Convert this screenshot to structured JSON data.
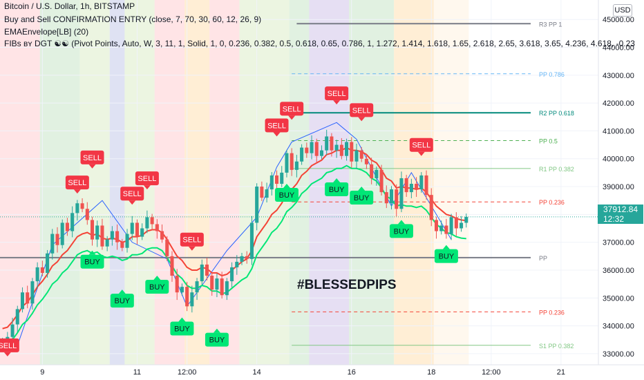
{
  "header": {
    "symbol_line": "Bitcoin / U.S. Dollar, 1h, BITSTAMP",
    "indicator_1": "Buy and Sell CONFIRMATION ENTRY (close, 7, 70, 30, 60, 12, 26, 9)",
    "indicator_2": "EMAEnvelope[LB] (20)",
    "indicator_3": "FIBs ʙʏ DGT ☯☯ (Pivot Points, Auto, W, 3, 11, 1, Solid, 1, 0, 0.236, 0.382, 0.5, 0.618, 0.65, 0.786, 1, 1.272, 1.414, 1.618, 1.65, 2.618, 2.65, 3.618, 3.65, 4.236, 4.618, -0.23"
  },
  "currency_badge": "USD",
  "current_price": {
    "value": "37912.84",
    "countdown": "12:32",
    "level": 37912.84
  },
  "watermark_text": "#BLESSEDPIPS",
  "colors": {
    "up": "#26a69a",
    "down": "#ef5350",
    "sell": "#f23645",
    "buy": "#00e676",
    "ema_red": "#f44336",
    "ema_green": "#4caf50",
    "pivot": "#787b86"
  },
  "chart_data": {
    "type": "candlestick",
    "ylim": [
      32600,
      45700
    ],
    "y_ticks": [
      "33000.00",
      "34000.00",
      "35000.00",
      "36000.00",
      "37000.00",
      "38000.00",
      "39000.00",
      "40000.00",
      "41000.00",
      "42000.00",
      "43000.00",
      "44000.00",
      "45000.00"
    ],
    "x_ticks": [
      {
        "label": "9",
        "bar": 8
      },
      {
        "label": "11",
        "bar": 27
      },
      {
        "label": "12:00",
        "bar": 37
      },
      {
        "label": "14",
        "bar": 51
      },
      {
        "label": "16",
        "bar": 70
      },
      {
        "label": "18",
        "bar": 86
      },
      {
        "label": "12:00",
        "bar": 98
      },
      {
        "label": "21",
        "bar": 112
      }
    ],
    "bars_total": 120,
    "close": [
      33450,
      33600,
      34050,
      34600,
      35200,
      34800,
      35600,
      36100,
      35900,
      36600,
      37300,
      36900,
      37700,
      37400,
      38050,
      38400,
      38200,
      37800,
      37100,
      37600,
      36850,
      37100,
      37400,
      37000,
      36800,
      37300,
      37700,
      37200,
      37500,
      37900,
      37650,
      37400,
      37100,
      36500,
      35800,
      35200,
      35400,
      34700,
      35200,
      35600,
      36200,
      35800,
      35300,
      35700,
      35100,
      35600,
      36100,
      36300,
      36500,
      36400,
      37700,
      39000,
      38600,
      38900,
      39400,
      39100,
      39500,
      40200,
      39600,
      39900,
      40400,
      40200,
      40600,
      40100,
      40300,
      40800,
      40300,
      40500,
      40100,
      40600,
      39900,
      40300,
      40000,
      39800,
      39300,
      39600,
      38800,
      38400,
      38900,
      38200,
      39300,
      38800,
      39100,
      38900,
      39400,
      38700,
      37800,
      37400,
      37600,
      37300,
      37900,
      37500,
      37700,
      37912
    ],
    "ema_upper": [
      33900,
      33950,
      34150,
      34400,
      34700,
      34850,
      35100,
      35400,
      35600,
      35850,
      36150,
      36300,
      36550,
      36700,
      36950,
      37200,
      37300,
      37350,
      37250,
      37300,
      37150,
      37100,
      37150,
      37100,
      37000,
      37050,
      37200,
      37200,
      37250,
      37400,
      37450,
      37450,
      37350,
      37100,
      36800,
      36500,
      36350,
      36100,
      36000,
      36000,
      36100,
      36050,
      35900,
      35900,
      35800,
      35850,
      36000,
      36150,
      36300,
      36400,
      36700,
      37200,
      37450,
      37700,
      38000,
      38150,
      38400,
      38750,
      38900,
      39100,
      39400,
      39550,
      39750,
      39850,
      39950,
      40150,
      40200,
      40300,
      40300,
      40400,
      40300,
      40300,
      40250,
      40150,
      39950,
      39850,
      39600,
      39300,
      39200,
      38950,
      39000,
      38950,
      38950,
      38900,
      38950,
      38800,
      38550,
      38300,
      38150,
      38000,
      37950,
      37850,
      37800,
      37780
    ],
    "ema_lower": [
      33200,
      33300,
      33500,
      33750,
      34050,
      34200,
      34450,
      34750,
      34950,
      35200,
      35500,
      35650,
      35900,
      36050,
      36300,
      36550,
      36650,
      36700,
      36600,
      36650,
      36500,
      36450,
      36500,
      36450,
      36350,
      36400,
      36550,
      36550,
      36600,
      36750,
      36800,
      36800,
      36700,
      36450,
      36150,
      35850,
      35700,
      35450,
      35350,
      35350,
      35450,
      35400,
      35250,
      35250,
      35150,
      35200,
      35350,
      35500,
      35650,
      35750,
      36050,
      36550,
      36800,
      37050,
      37350,
      37500,
      37750,
      38100,
      38250,
      38450,
      38750,
      38900,
      39100,
      39200,
      39300,
      39500,
      39550,
      39650,
      39650,
      39750,
      39650,
      39650,
      39600,
      39500,
      39300,
      39200,
      38950,
      38650,
      38550,
      38300,
      38350,
      38300,
      38300,
      38250,
      38300,
      38150,
      37900,
      37650,
      37500,
      37350,
      37300,
      37200,
      37150,
      37130
    ],
    "pivot_levels": [
      {
        "label": "R3 PP 1",
        "value": 44850,
        "color": "#787b86",
        "style": "solid",
        "width": 2
      },
      {
        "label": "PP 0.786",
        "value": 43050,
        "color": "#64b5f6",
        "style": "dashed",
        "width": 1
      },
      {
        "label": "R2 PP 0.618",
        "value": 41650,
        "color": "#00897b",
        "style": "solid",
        "width": 2
      },
      {
        "label": "PP 0.5",
        "value": 40650,
        "color": "#4caf50",
        "style": "dashed",
        "width": 1
      },
      {
        "label": "R1 PP 0.382",
        "value": 39650,
        "color": "#81c784",
        "style": "solid",
        "width": 1
      },
      {
        "label": "PP 0.236",
        "value": 38450,
        "color": "#f44336",
        "style": "dashed",
        "width": 1
      },
      {
        "label": "PP",
        "value": 36450,
        "color": "#787b86",
        "style": "solid",
        "width": 2
      },
      {
        "label": "PP 0.236",
        "value": 34500,
        "color": "#f44336",
        "style": "dashed",
        "width": 1
      },
      {
        "label": "S1 PP 0.382",
        "value": 33300,
        "color": "#81c784",
        "style": "solid",
        "width": 1
      }
    ],
    "signals": [
      {
        "type": "sell",
        "label": "SELL",
        "bar": 1,
        "price": 32900
      },
      {
        "type": "sell",
        "label": "SELL",
        "bar": 15,
        "price": 38750
      },
      {
        "type": "sell",
        "label": "SELL",
        "bar": 18,
        "price": 39650
      },
      {
        "type": "sell",
        "label": "SELL",
        "bar": 26,
        "price": 38350
      },
      {
        "type": "sell",
        "label": "SELL",
        "bar": 29,
        "price": 38900
      },
      {
        "type": "sell",
        "label": "SELL",
        "bar": 38,
        "price": 36700
      },
      {
        "type": "sell",
        "label": "SELL",
        "bar": 55,
        "price": 40800
      },
      {
        "type": "sell",
        "label": "SELL",
        "bar": 58,
        "price": 41400
      },
      {
        "type": "sell",
        "label": "SELL",
        "bar": 67,
        "price": 41950
      },
      {
        "type": "sell",
        "label": "SELL",
        "bar": 72,
        "price": 41350
      },
      {
        "type": "sell",
        "label": "SELL",
        "bar": 84,
        "price": 40100
      },
      {
        "type": "buy",
        "label": "BUY",
        "bar": 18,
        "price": 36700
      },
      {
        "type": "buy",
        "label": "BUY",
        "bar": 24,
        "price": 35300
      },
      {
        "type": "buy",
        "label": "BUY",
        "bar": 31,
        "price": 35800
      },
      {
        "type": "buy",
        "label": "BUY",
        "bar": 36,
        "price": 34300
      },
      {
        "type": "buy",
        "label": "BUY",
        "bar": 43,
        "price": 33900
      },
      {
        "type": "buy",
        "label": "BUY",
        "bar": 57,
        "price": 39100
      },
      {
        "type": "buy",
        "label": "BUY",
        "bar": 67,
        "price": 39300
      },
      {
        "type": "buy",
        "label": "BUY",
        "bar": 72,
        "price": 39000
      },
      {
        "type": "buy",
        "label": "BUY",
        "bar": 80,
        "price": 37800
      },
      {
        "type": "buy",
        "label": "BUY",
        "bar": 89,
        "price": 36900
      }
    ],
    "zigzag": [
      [
        3,
        33300
      ],
      [
        10,
        36900
      ],
      [
        20,
        38500
      ],
      [
        26,
        37000
      ],
      [
        33,
        36400
      ],
      [
        37,
        34700
      ],
      [
        45,
        36700
      ],
      [
        51,
        37900
      ],
      [
        55,
        39700
      ],
      [
        58,
        40600
      ],
      [
        67,
        41300
      ],
      [
        71,
        40700
      ],
      [
        78,
        38300
      ],
      [
        82,
        39500
      ],
      [
        90,
        37100
      ]
    ],
    "bg_zones": [
      {
        "from": 0,
        "to": 8,
        "color": "#ffcdd2"
      },
      {
        "from": 8,
        "to": 16,
        "color": "#c8e6c9"
      },
      {
        "from": 16,
        "to": 22,
        "color": "#dcedc8"
      },
      {
        "from": 22,
        "to": 25,
        "color": "#c5cae9"
      },
      {
        "from": 25,
        "to": 31,
        "color": "#dcedc8"
      },
      {
        "from": 31,
        "to": 37,
        "color": "#ffcdd2"
      },
      {
        "from": 37,
        "to": 42,
        "color": "#ffe0b2"
      },
      {
        "from": 42,
        "to": 48,
        "color": "#ffcdd2"
      },
      {
        "from": 48,
        "to": 58,
        "color": "#dcedc8"
      },
      {
        "from": 58,
        "to": 62,
        "color": "#c8e6c9"
      },
      {
        "from": 62,
        "to": 70,
        "color": "#d1c4e9"
      },
      {
        "from": 70,
        "to": 79,
        "color": "#c8e6c9"
      },
      {
        "from": 79,
        "to": 87,
        "color": "#ffe0b2"
      },
      {
        "from": 87,
        "to": 94,
        "color": "#fff3e0"
      }
    ]
  }
}
